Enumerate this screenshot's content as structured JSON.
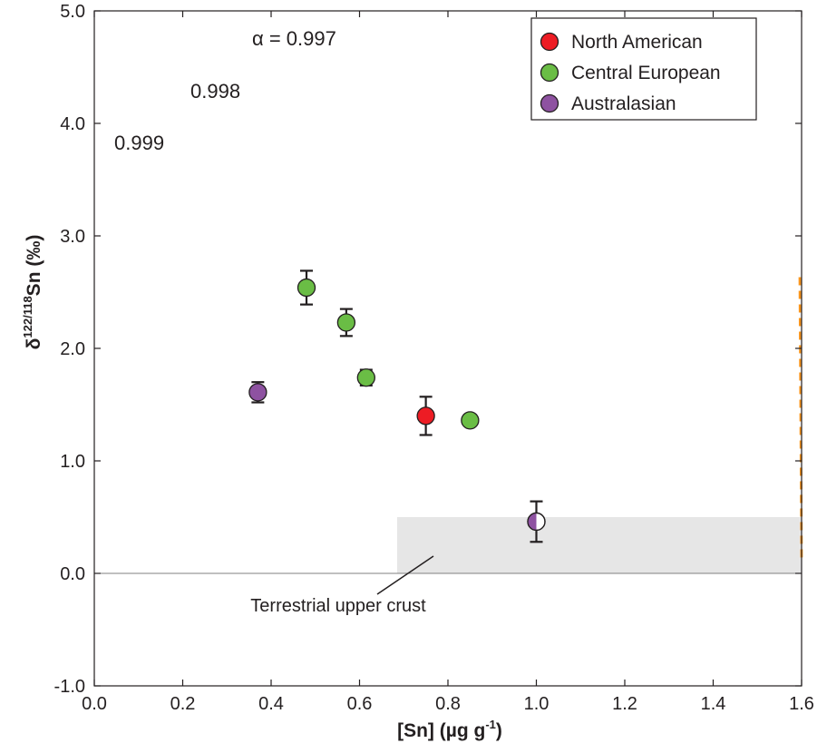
{
  "chart_data": {
    "type": "scatter",
    "xlabel_main": "[Sn] (µg g",
    "xlabel_sup": "-1",
    "xlabel_end": ")",
    "ylabel_main": "δ",
    "ylabel_sup": "122/118",
    "ylabel_end": "Sn (‰)",
    "xlim": [
      0.0,
      1.6
    ],
    "ylim": [
      -1.0,
      5.0
    ],
    "x_ticks": [
      "0.0",
      "0.2",
      "0.4",
      "0.6",
      "0.8",
      "1.0",
      "1.2",
      "1.4",
      "1.6"
    ],
    "y_ticks": [
      "-1.0",
      "0.0",
      "1.0",
      "2.0",
      "3.0",
      "4.0",
      "5.0"
    ],
    "grid": false,
    "legend_position": "top-right",
    "series": [
      {
        "name": "North American",
        "color": "#ed1c24",
        "points": [
          {
            "x": 0.75,
            "y": 1.4,
            "err": 0.17
          }
        ]
      },
      {
        "name": "Central European",
        "color": "#6abd45",
        "points": [
          {
            "x": 0.48,
            "y": 2.54,
            "err": 0.15
          },
          {
            "x": 0.57,
            "y": 2.23,
            "err": 0.12
          },
          {
            "x": 0.615,
            "y": 1.74,
            "err": 0.07
          },
          {
            "x": 0.85,
            "y": 1.36,
            "err": 0.0
          }
        ]
      },
      {
        "name": "Australasian",
        "color": "#8e52a1",
        "points": [
          {
            "x": 0.37,
            "y": 1.61,
            "err": 0.09
          },
          {
            "x": 1.0,
            "y": 0.46,
            "err": 0.18,
            "half_filled": true
          }
        ]
      }
    ],
    "curves": [
      {
        "label": "0.999",
        "color": "#f7941d",
        "alpha": 0.999
      },
      {
        "label": "0.998",
        "color": "#6abd45",
        "alpha": 0.998
      },
      {
        "label": "α = 0.997",
        "color": "#2b8ac6",
        "alpha": 0.997
      }
    ],
    "curve_end": {
      "x": 1.6,
      "y": 0.13
    },
    "shaded_region": {
      "label": "Terrestrial upper crust",
      "x": [
        0.685,
        1.6
      ],
      "y": [
        0.0,
        0.5
      ],
      "color": "#e6e6e6"
    }
  }
}
